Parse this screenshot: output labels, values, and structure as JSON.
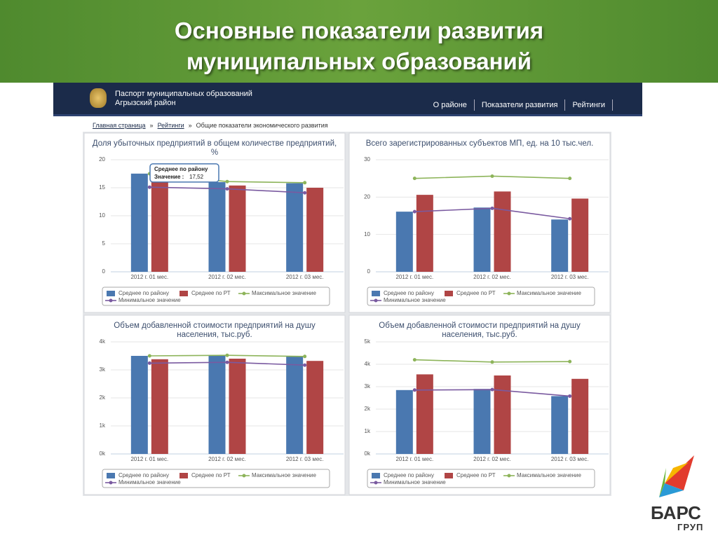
{
  "slide_title": "Основные показатели развития муниципальных образований",
  "header": {
    "title": "Паспорт муниципальных образований",
    "subtitle": "Агрызский район"
  },
  "nav": [
    "О районе",
    "Показатели развития",
    "Рейтинги"
  ],
  "breadcrumb": [
    "Главная страница",
    "»",
    "Рейтинги",
    "»",
    "Общие показатели экономического развития"
  ],
  "logo": {
    "name": "БАРС",
    "subname": "ГРУП"
  },
  "chart_data": [
    {
      "type": "bar",
      "title": "Доля убыточных предприятий в общем количестве предприятий, %",
      "categories": [
        "2012 г. 01 мес.",
        "2012 г. 02 мес.",
        "2012 г. 03 мес."
      ],
      "ylim": [
        0,
        20
      ],
      "yticks": [
        0,
        5,
        10,
        15,
        20
      ],
      "grid": true,
      "series": [
        {
          "name": "Среднее по району",
          "type": "bar",
          "color": "#4a78b0",
          "values": [
            17.52,
            16.0,
            15.8
          ]
        },
        {
          "name": "Среднее по РТ",
          "type": "bar",
          "color": "#b04545",
          "values": [
            16.3,
            15.4,
            15.0
          ]
        },
        {
          "name": "Максимальное значение",
          "type": "line",
          "color": "#8db45a",
          "values": [
            17.5,
            16.1,
            15.9
          ]
        },
        {
          "name": "Минимальное значение",
          "type": "line",
          "color": "#7a5aa0",
          "values": [
            15.1,
            14.8,
            14.1
          ]
        }
      ],
      "tooltip": {
        "label": "Значение :",
        "value_label": "17,52"
      }
    },
    {
      "type": "bar",
      "title": "Всего зарегистрированных субъектов МП, ед. на 10 тыс.чел.",
      "categories": [
        "2012 г. 01 мес.",
        "2012 г. 02 мес.",
        "2012 г. 03 мес."
      ],
      "ylim": [
        0,
        30
      ],
      "yticks": [
        0,
        10,
        20,
        30
      ],
      "grid": true,
      "series": [
        {
          "name": "Среднее по району",
          "type": "bar",
          "color": "#4a78b0",
          "values": [
            16.1,
            17.2,
            14.0
          ]
        },
        {
          "name": "Среднее по РТ",
          "type": "bar",
          "color": "#b04545",
          "values": [
            20.6,
            21.5,
            19.6
          ]
        },
        {
          "name": "Максимальное значение",
          "type": "line",
          "color": "#8db45a",
          "values": [
            25.0,
            25.6,
            25.0
          ]
        },
        {
          "name": "Минимальное значение",
          "type": "line",
          "color": "#7a5aa0",
          "values": [
            16.1,
            17.0,
            14.2
          ]
        }
      ]
    },
    {
      "type": "bar",
      "title": "Объем добавленной стоимости предприятий на душу населения, тыс.руб.",
      "categories": [
        "2012 г. 01 мес.",
        "2012 г. 02 мес.",
        "2012 г. 03 мес."
      ],
      "ylim": [
        0,
        4000
      ],
      "yticks": [
        {
          "value": 0,
          "label": "0k"
        },
        {
          "value": 1000,
          "label": "1k"
        },
        {
          "value": 2000,
          "label": "2k"
        },
        {
          "value": 3000,
          "label": "3k"
        },
        {
          "value": 4000,
          "label": "4k"
        }
      ],
      "grid": true,
      "series": [
        {
          "name": "Среднее по району",
          "type": "bar",
          "color": "#4a78b0",
          "values": [
            3500,
            3500,
            3480
          ]
        },
        {
          "name": "Среднее по РТ",
          "type": "bar",
          "color": "#b04545",
          "values": [
            3380,
            3400,
            3320
          ]
        },
        {
          "name": "Максимальное значение",
          "type": "line",
          "color": "#8db45a",
          "values": [
            3500,
            3520,
            3480
          ]
        },
        {
          "name": "Минимальное значение",
          "type": "line",
          "color": "#7a5aa0",
          "values": [
            3240,
            3270,
            3170
          ]
        }
      ]
    },
    {
      "type": "bar",
      "title": "Объем добавленной стоимости предприятий на душу населения, тыс.руб.",
      "categories": [
        "2012 г. 01 мес.",
        "2012 г. 02 мес.",
        "2012 г. 03 мес."
      ],
      "ylim": [
        0,
        5000
      ],
      "yticks": [
        {
          "value": 0,
          "label": "0k"
        },
        {
          "value": 1000,
          "label": "1k"
        },
        {
          "value": 2000,
          "label": "2k"
        },
        {
          "value": 3000,
          "label": "3k"
        },
        {
          "value": 4000,
          "label": "4k"
        },
        {
          "value": 5000,
          "label": "5k"
        }
      ],
      "grid": true,
      "series": [
        {
          "name": "Среднее по району",
          "type": "bar",
          "color": "#4a78b0",
          "values": [
            2850,
            2900,
            2580
          ]
        },
        {
          "name": "Среднее по РТ",
          "type": "bar",
          "color": "#b04545",
          "values": [
            3550,
            3500,
            3350
          ]
        },
        {
          "name": "Максимальное значение",
          "type": "line",
          "color": "#8db45a",
          "values": [
            4200,
            4100,
            4120
          ]
        },
        {
          "name": "Минимальное значение",
          "type": "line",
          "color": "#7a5aa0",
          "values": [
            2850,
            2870,
            2580
          ]
        }
      ]
    }
  ]
}
